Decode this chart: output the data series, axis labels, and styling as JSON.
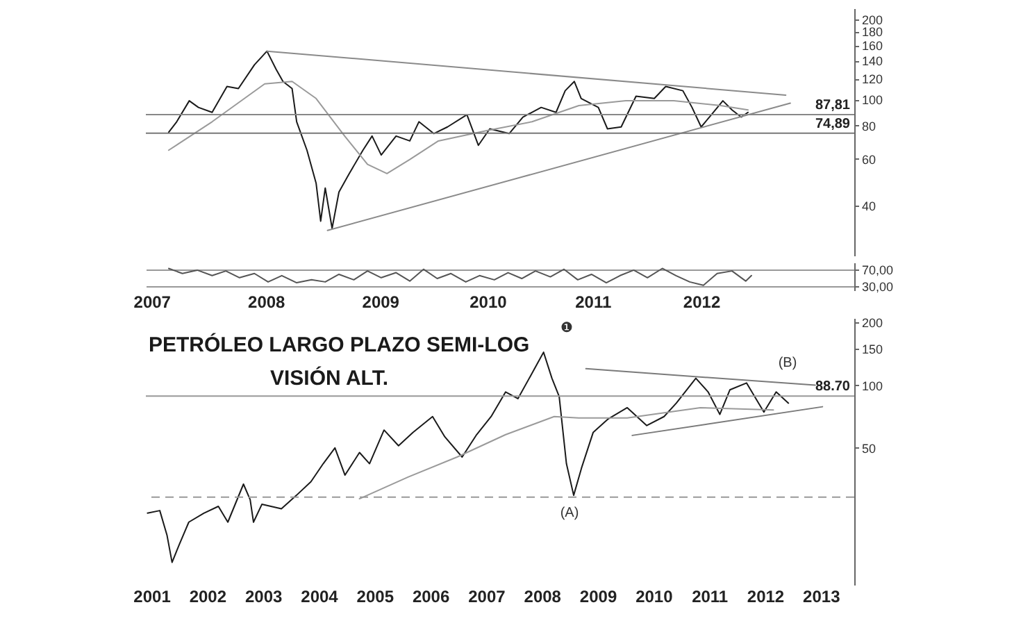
{
  "chart_data": [
    {
      "type": "line",
      "xlim": [
        2007.45,
        2013.65
      ],
      "ylim": [
        26,
        220
      ],
      "yticks": [
        40,
        60,
        80,
        100,
        120,
        140,
        160,
        180,
        200
      ],
      "log": true,
      "tick_labels": "y",
      "series": [
        {
          "color": "#1a1a1a",
          "x": [
            2007.65,
            2007.72,
            2007.83,
            2007.91,
            2008.03,
            2008.16,
            2008.26,
            2008.4,
            2008.51,
            2008.59,
            2008.65,
            2008.73,
            2008.77,
            2008.86,
            2008.94,
            2008.98,
            2009.02,
            2009.08,
            2009.14,
            2009.23,
            2009.35,
            2009.43,
            2009.51,
            2009.64,
            2009.76,
            2009.84,
            2009.97,
            2010.09,
            2010.26,
            2010.36,
            2010.46,
            2010.63,
            2010.75,
            2010.91,
            2011.04,
            2011.12,
            2011.2,
            2011.26,
            2011.41,
            2011.49,
            2011.61,
            2011.74,
            2011.9,
            2012.0,
            2012.15,
            2012.23,
            2012.31,
            2012.4,
            2012.5,
            2012.58,
            2012.66,
            2012.72
          ],
          "values": [
            75.5,
            82.6,
            99,
            93.5,
            89.6,
            112,
            110,
            135,
            152,
            130,
            117,
            110,
            82.6,
            64.6,
            48.6,
            35,
            46.6,
            32.9,
            45,
            52.8,
            64.6,
            73,
            62,
            73,
            70,
            82.6,
            74.6,
            79,
            87.8,
            67.4,
            77.7,
            74.6,
            86,
            93.5,
            89.6,
            108,
            117,
            101,
            93.5,
            77.7,
            79,
            103,
            101,
            112,
            108,
            93.5,
            79,
            87.8,
            99,
            91.5,
            86,
            89.6
          ]
        },
        {
          "color": "#9a9a9a",
          "x": [
            2007.65,
            2008.03,
            2008.49,
            2008.73,
            2008.94,
            2009.19,
            2009.39,
            2009.56,
            2009.76,
            2010.01,
            2010.42,
            2010.83,
            2011.24,
            2011.65,
            2012.07,
            2012.48,
            2012.72
          ],
          "values": [
            64.6,
            82.6,
            114.6,
            117,
            101,
            73,
            57.2,
            52.8,
            59.6,
            70,
            76.3,
            82.6,
            95,
            99,
            99,
            95,
            91.5
          ]
        },
        {
          "color": "#8a8a8a",
          "x": [
            2008.51,
            2013.05
          ],
          "values": [
            152,
            104
          ]
        },
        {
          "color": "#8a8a8a",
          "x": [
            2009.04,
            2013.09
          ],
          "values": [
            32.3,
            97
          ]
        }
      ],
      "ref_lines": [
        {
          "axis": "y",
          "value": 87.81,
          "label": "87,81",
          "color": "#888888"
        },
        {
          "axis": "y",
          "value": 74.89,
          "label": "74,89",
          "color": "#777777"
        }
      ]
    },
    {
      "type": "line",
      "xlim": [
        2007.45,
        2013.65
      ],
      "ylim": [
        20,
        86
      ],
      "yticks": [
        {
          "value": 70,
          "label": "70,00"
        },
        {
          "value": 30,
          "label": "30,00"
        }
      ],
      "grid": "y",
      "xticks": [
        {
          "value": 2007.5,
          "label": "2007"
        },
        {
          "value": 2008.5,
          "label": "2008"
        },
        {
          "value": 2009.5,
          "label": "2009"
        },
        {
          "value": 2010.44,
          "label": "2010"
        },
        {
          "value": 2011.36,
          "label": "2011"
        },
        {
          "value": 2012.31,
          "label": "2012"
        }
      ],
      "series": [
        {
          "color": "#555555",
          "x": [
            2007.65,
            2007.77,
            2007.9,
            2008.03,
            2008.15,
            2008.27,
            2008.4,
            2008.52,
            2008.64,
            2008.77,
            2008.9,
            2009.02,
            2009.14,
            2009.27,
            2009.39,
            2009.51,
            2009.64,
            2009.76,
            2009.88,
            2010.0,
            2010.12,
            2010.25,
            2010.37,
            2010.5,
            2010.62,
            2010.74,
            2010.86,
            2010.99,
            2011.11,
            2011.23,
            2011.35,
            2011.48,
            2011.6,
            2011.72,
            2011.84,
            2011.97,
            2012.09,
            2012.21,
            2012.33,
            2012.45,
            2012.58,
            2012.7,
            2012.75
          ],
          "values": [
            72,
            60,
            68,
            55,
            66,
            50,
            60,
            40,
            55,
            38,
            45,
            40,
            58,
            45,
            66,
            50,
            62,
            42,
            70,
            48,
            60,
            40,
            55,
            45,
            62,
            48,
            66,
            52,
            70,
            45,
            58,
            38,
            55,
            68,
            50,
            72,
            55,
            40,
            32,
            60,
            66,
            42,
            55
          ]
        }
      ]
    },
    {
      "type": "line",
      "title": "PETRÓLEO LARGO PLAZO SEMI-LOG",
      "subtitle": "VISIÓN ALT.",
      "xlim": [
        2001.4,
        2014.1
      ],
      "ylim": [
        11,
        210
      ],
      "yticks": [
        50,
        100,
        150,
        200
      ],
      "log": true,
      "xticks": [
        {
          "value": 2001.5,
          "label": "2001"
        },
        {
          "value": 2002.5,
          "label": "2002"
        },
        {
          "value": 2003.5,
          "label": "2003"
        },
        {
          "value": 2004.5,
          "label": "2004"
        },
        {
          "value": 2005.5,
          "label": "2005"
        },
        {
          "value": 2006.5,
          "label": "2006"
        },
        {
          "value": 2007.5,
          "label": "2007"
        },
        {
          "value": 2008.5,
          "label": "2008"
        },
        {
          "value": 2009.5,
          "label": "2009"
        },
        {
          "value": 2010.5,
          "label": "2010"
        },
        {
          "value": 2011.5,
          "label": "2011"
        },
        {
          "value": 2012.5,
          "label": "2012"
        },
        {
          "value": 2013.5,
          "label": "2013"
        }
      ],
      "series": [
        {
          "color": "#1a1a1a",
          "x": [
            2001.43,
            2001.65,
            2001.78,
            2001.87,
            2002.0,
            2002.17,
            2002.44,
            2002.7,
            2002.87,
            2003.15,
            2003.27,
            2003.33,
            2003.48,
            2003.83,
            2004.1,
            2004.36,
            2004.58,
            2004.79,
            2004.97,
            2005.23,
            2005.41,
            2005.67,
            2005.93,
            2006.19,
            2006.54,
            2006.76,
            2007.07,
            2007.33,
            2007.59,
            2007.85,
            2008.07,
            2008.29,
            2008.53,
            2008.68,
            2008.81,
            2008.94,
            2009.07,
            2009.21,
            2009.42,
            2009.69,
            2010.03,
            2010.38,
            2010.69,
            2010.91,
            2011.26,
            2011.48,
            2011.69,
            2011.87,
            2012.17,
            2012.48,
            2012.7,
            2012.92
          ],
          "values": [
            24.3,
            25,
            19,
            14.1,
            17.2,
            22,
            24.3,
            26.2,
            22,
            33.5,
            28.2,
            22,
            26.8,
            25.5,
            29.6,
            34.4,
            42,
            50,
            37,
            47.5,
            42,
            60.9,
            51.2,
            59.4,
            70.7,
            56.5,
            45.2,
            57.9,
            70.7,
            92.8,
            86.2,
            110,
            144,
            108,
            88.3,
            42,
            29.6,
            40,
            59.4,
            68.9,
            78,
            64,
            70.7,
            82,
            108,
            92.8,
            72.4,
            95,
            102.5,
            74.3,
            92.8,
            82
          ]
        },
        {
          "color": "#9a9a9a",
          "x": [
            2005.23,
            2006.1,
            2006.98,
            2007.85,
            2008.72,
            2009.16,
            2010.03,
            2011.34,
            2012.65
          ],
          "values": [
            28.5,
            36.2,
            45.2,
            57.9,
            70.7,
            69.6,
            69.6,
            78,
            76.1
          ]
        },
        {
          "color": "#7a7a7a",
          "x": [
            2009.29,
            2013.4
          ],
          "values": [
            120,
            100
          ]
        },
        {
          "color": "#7a7a7a",
          "x": [
            2010.12,
            2013.53
          ],
          "values": [
            57.4,
            78.8
          ]
        }
      ],
      "ref_lines": [
        {
          "axis": "y",
          "value": 88.7,
          "label": "88.70",
          "color": "#999999"
        },
        {
          "axis": "y",
          "value": 29,
          "color": "#999999",
          "line_style": "dashed"
        }
      ],
      "annotations": [
        "(A)",
        "(B)",
        "❶"
      ]
    }
  ]
}
